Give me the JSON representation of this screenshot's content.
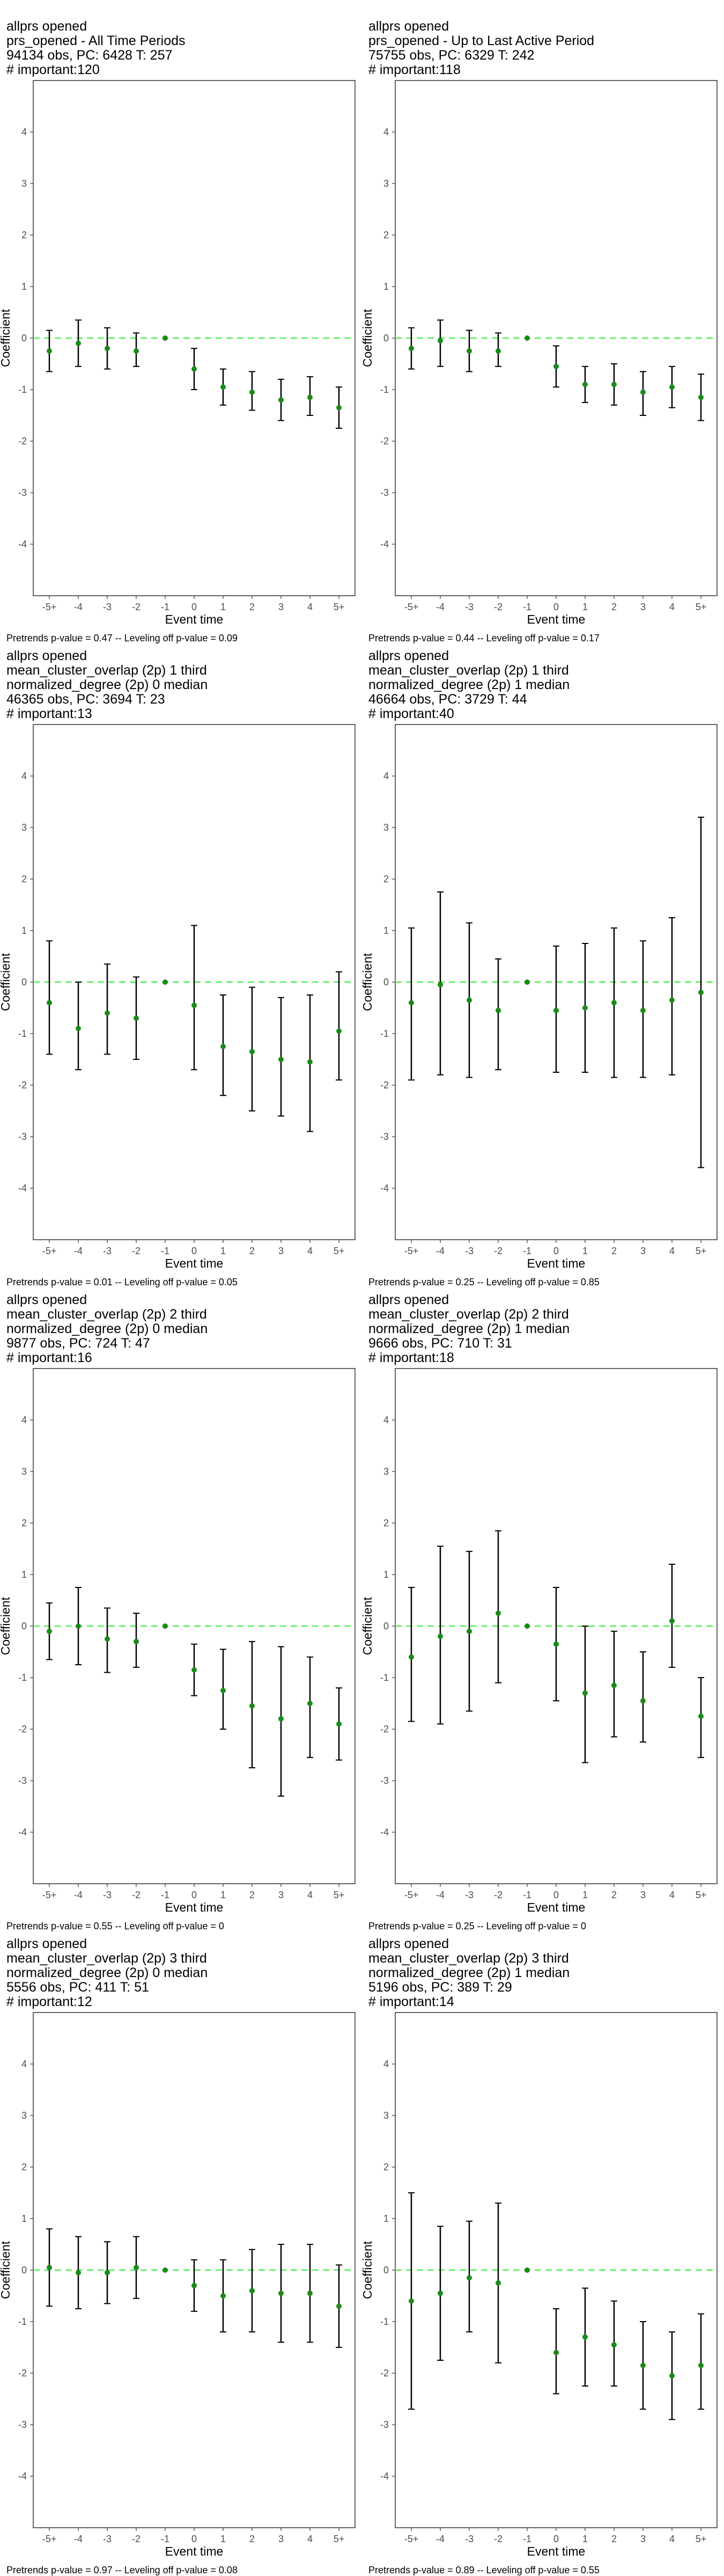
{
  "chart_data": [
    {
      "type": "scatter",
      "header": [
        "allprs opened",
        "prs_opened - All Time Periods",
        "94134 obs, PC: 6428 T: 257",
        "# important:120"
      ],
      "caption": "Pretrends p-value = 0.47 -- Leveling off p-value = 0.09",
      "xlabel": "Event time",
      "ylabel": "Coefficient",
      "categories": [
        "-5+",
        "-4",
        "-3",
        "-2",
        "-1",
        "0",
        "1",
        "2",
        "3",
        "4",
        "5+"
      ],
      "ylim": [
        -5,
        5
      ],
      "yticks": [
        -4,
        -3,
        -2,
        -1,
        0,
        1,
        2,
        3,
        4
      ],
      "series": [
        {
          "values": [
            -0.25,
            -0.1,
            -0.2,
            -0.25,
            0,
            -0.6,
            -0.95,
            -1.05,
            -1.2,
            -1.15,
            -1.35
          ],
          "ci_low": [
            -0.65,
            -0.55,
            -0.6,
            -0.55,
            0,
            -1.0,
            -1.3,
            -1.4,
            -1.6,
            -1.5,
            -1.75
          ],
          "ci_high": [
            0.15,
            0.35,
            0.2,
            0.1,
            0,
            -0.2,
            -0.6,
            -0.65,
            -0.8,
            -0.75,
            -0.95
          ]
        }
      ]
    },
    {
      "type": "scatter",
      "header": [
        "allprs opened",
        "prs_opened - Up to Last Active Period",
        "75755 obs, PC: 6329 T: 242",
        "# important:118"
      ],
      "caption": "Pretrends p-value = 0.44 -- Leveling off p-value = 0.17",
      "xlabel": "Event time",
      "ylabel": "Coefficient",
      "categories": [
        "-5+",
        "-4",
        "-3",
        "-2",
        "-1",
        "0",
        "1",
        "2",
        "3",
        "4",
        "5+"
      ],
      "ylim": [
        -5,
        5
      ],
      "yticks": [
        -4,
        -3,
        -2,
        -1,
        0,
        1,
        2,
        3,
        4
      ],
      "series": [
        {
          "values": [
            -0.2,
            -0.05,
            -0.25,
            -0.25,
            0,
            -0.55,
            -0.9,
            -0.9,
            -1.05,
            -0.95,
            -1.15
          ],
          "ci_low": [
            -0.6,
            -0.55,
            -0.65,
            -0.55,
            0,
            -0.95,
            -1.25,
            -1.3,
            -1.5,
            -1.35,
            -1.6
          ],
          "ci_high": [
            0.2,
            0.35,
            0.15,
            0.1,
            0,
            -0.15,
            -0.55,
            -0.5,
            -0.65,
            -0.55,
            -0.7
          ]
        }
      ]
    },
    {
      "type": "scatter",
      "header": [
        "allprs opened",
        "mean_cluster_overlap (2p) 1 third",
        "normalized_degree (2p) 0 median",
        "46365 obs, PC: 3694 T: 23",
        "# important:13"
      ],
      "caption": "Pretrends p-value = 0.01 -- Leveling off p-value = 0.05",
      "xlabel": "Event time",
      "ylabel": "Coefficient",
      "categories": [
        "-5+",
        "-4",
        "-3",
        "-2",
        "-1",
        "0",
        "1",
        "2",
        "3",
        "4",
        "5+"
      ],
      "ylim": [
        -5,
        5
      ],
      "yticks": [
        -4,
        -3,
        -2,
        -1,
        0,
        1,
        2,
        3,
        4
      ],
      "series": [
        {
          "values": [
            -0.4,
            -0.9,
            -0.6,
            -0.7,
            0,
            -0.45,
            -1.25,
            -1.35,
            -1.5,
            -1.55,
            -0.95
          ],
          "ci_low": [
            -1.4,
            -1.7,
            -1.4,
            -1.5,
            0,
            -1.7,
            -2.2,
            -2.5,
            -2.6,
            -2.9,
            -1.9
          ],
          "ci_high": [
            0.8,
            0.0,
            0.35,
            0.1,
            0,
            1.1,
            -0.25,
            -0.1,
            -0.3,
            -0.25,
            0.2
          ]
        }
      ]
    },
    {
      "type": "scatter",
      "header": [
        "allprs opened",
        "mean_cluster_overlap (2p) 1 third",
        "normalized_degree (2p) 1 median",
        "46664 obs, PC: 3729 T: 44",
        "# important:40"
      ],
      "caption": "Pretrends p-value = 0.25 -- Leveling off p-value = 0.85",
      "xlabel": "Event time",
      "ylabel": "Coefficient",
      "categories": [
        "-5+",
        "-4",
        "-3",
        "-2",
        "-1",
        "0",
        "1",
        "2",
        "3",
        "4",
        "5+"
      ],
      "ylim": [
        -5,
        5
      ],
      "yticks": [
        -4,
        -3,
        -2,
        -1,
        0,
        1,
        2,
        3,
        4
      ],
      "series": [
        {
          "values": [
            -0.4,
            -0.05,
            -0.35,
            -0.55,
            0,
            -0.55,
            -0.5,
            -0.4,
            -0.55,
            -0.35,
            -0.2
          ],
          "ci_low": [
            -1.9,
            -1.8,
            -1.85,
            -1.7,
            0,
            -1.75,
            -1.75,
            -1.85,
            -1.85,
            -1.8,
            -3.6
          ],
          "ci_high": [
            1.05,
            1.75,
            1.15,
            0.45,
            0,
            0.7,
            0.75,
            1.05,
            0.8,
            1.25,
            3.2
          ]
        }
      ]
    },
    {
      "type": "scatter",
      "header": [
        "allprs opened",
        "mean_cluster_overlap (2p) 2 third",
        "normalized_degree (2p) 0 median",
        "9877 obs, PC: 724 T: 47",
        "# important:16"
      ],
      "caption": "Pretrends p-value = 0.55 -- Leveling off p-value = 0",
      "xlabel": "Event time",
      "ylabel": "Coefficient",
      "categories": [
        "-5+",
        "-4",
        "-3",
        "-2",
        "-1",
        "0",
        "1",
        "2",
        "3",
        "4",
        "5+"
      ],
      "ylim": [
        -5,
        5
      ],
      "yticks": [
        -4,
        -3,
        -2,
        -1,
        0,
        1,
        2,
        3,
        4
      ],
      "series": [
        {
          "values": [
            -0.1,
            0.0,
            -0.25,
            -0.3,
            0,
            -0.85,
            -1.25,
            -1.55,
            -1.8,
            -1.5,
            -1.9
          ],
          "ci_low": [
            -0.65,
            -0.75,
            -0.9,
            -0.8,
            0,
            -1.35,
            -2.0,
            -2.75,
            -3.3,
            -2.55,
            -2.6
          ],
          "ci_high": [
            0.45,
            0.75,
            0.35,
            0.25,
            0,
            -0.35,
            -0.45,
            -0.3,
            -0.4,
            -0.6,
            -1.2
          ]
        }
      ]
    },
    {
      "type": "scatter",
      "header": [
        "allprs opened",
        "mean_cluster_overlap (2p) 2 third",
        "normalized_degree (2p) 1 median",
        "9666 obs, PC: 710 T: 31",
        "# important:18"
      ],
      "caption": "Pretrends p-value = 0.25 -- Leveling off p-value = 0",
      "xlabel": "Event time",
      "ylabel": "Coefficient",
      "categories": [
        "-5+",
        "-4",
        "-3",
        "-2",
        "-1",
        "0",
        "1",
        "2",
        "3",
        "4",
        "5+"
      ],
      "ylim": [
        -5,
        5
      ],
      "yticks": [
        -4,
        -3,
        -2,
        -1,
        0,
        1,
        2,
        3,
        4
      ],
      "series": [
        {
          "values": [
            -0.6,
            -0.2,
            -0.1,
            0.25,
            0,
            -0.35,
            -1.3,
            -1.15,
            -1.45,
            0.1,
            -1.75
          ],
          "ci_low": [
            -1.85,
            -1.9,
            -1.65,
            -1.1,
            0,
            -1.45,
            -2.65,
            -2.15,
            -2.25,
            -0.8,
            -2.55
          ],
          "ci_high": [
            0.75,
            1.55,
            1.45,
            1.85,
            0,
            0.75,
            0.0,
            -0.1,
            -0.5,
            1.2,
            -1.0
          ]
        }
      ]
    },
    {
      "type": "scatter",
      "header": [
        "allprs opened",
        "mean_cluster_overlap (2p) 3 third",
        "normalized_degree (2p) 0 median",
        "5556 obs, PC: 411 T: 51",
        "# important:12"
      ],
      "caption": "Pretrends p-value = 0.97 -- Leveling off p-value = 0.08",
      "xlabel": "Event time",
      "ylabel": "Coefficient",
      "categories": [
        "-5+",
        "-4",
        "-3",
        "-2",
        "-1",
        "0",
        "1",
        "2",
        "3",
        "4",
        "5+"
      ],
      "ylim": [
        -5,
        5
      ],
      "yticks": [
        -4,
        -3,
        -2,
        -1,
        0,
        1,
        2,
        3,
        4
      ],
      "series": [
        {
          "values": [
            0.05,
            -0.05,
            -0.05,
            0.05,
            0,
            -0.3,
            -0.5,
            -0.4,
            -0.45,
            -0.45,
            -0.7
          ],
          "ci_low": [
            -0.7,
            -0.75,
            -0.65,
            -0.55,
            0,
            -0.8,
            -1.2,
            -1.2,
            -1.4,
            -1.4,
            -1.5
          ],
          "ci_high": [
            0.8,
            0.65,
            0.55,
            0.65,
            0,
            0.2,
            0.2,
            0.4,
            0.5,
            0.5,
            0.1
          ]
        }
      ]
    },
    {
      "type": "scatter",
      "header": [
        "allprs opened",
        "mean_cluster_overlap (2p) 3 third",
        "normalized_degree (2p) 1 median",
        "5196 obs, PC: 389 T: 29",
        "# important:14"
      ],
      "caption": "Pretrends p-value = 0.89 -- Leveling off p-value = 0.55",
      "xlabel": "Event time",
      "ylabel": "Coefficient",
      "categories": [
        "-5+",
        "-4",
        "-3",
        "-2",
        "-1",
        "0",
        "1",
        "2",
        "3",
        "4",
        "5+"
      ],
      "ylim": [
        -5,
        5
      ],
      "yticks": [
        -4,
        -3,
        -2,
        -1,
        0,
        1,
        2,
        3,
        4
      ],
      "series": [
        {
          "values": [
            -0.6,
            -0.45,
            -0.15,
            -0.25,
            0,
            -1.6,
            -1.3,
            -1.45,
            -1.85,
            -2.05,
            -1.85
          ],
          "ci_low": [
            -2.7,
            -1.75,
            -1.2,
            -1.8,
            0,
            -2.4,
            -2.25,
            -2.25,
            -2.7,
            -2.9,
            -2.7
          ],
          "ci_high": [
            1.5,
            0.85,
            0.95,
            1.3,
            0,
            -0.75,
            -0.35,
            -0.6,
            -1.0,
            -1.2,
            -0.85
          ]
        }
      ]
    }
  ],
  "colors": {
    "point": "#1a8a1a",
    "zero_line": "#55ee55",
    "error_bar": "#000000",
    "panel_border": "#333333",
    "tick_text": "#4d4d4d"
  }
}
